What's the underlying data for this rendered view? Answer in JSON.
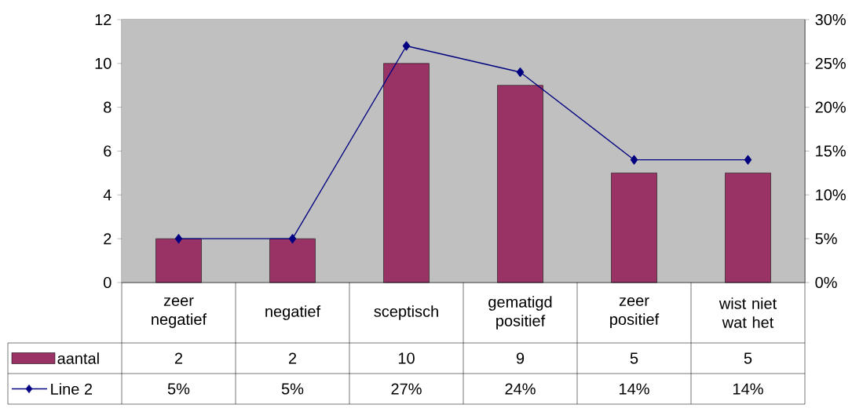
{
  "chart_data": {
    "type": "bar",
    "categories": [
      "zeer negatief",
      "negatief",
      "sceptisch",
      "gematigd positief",
      "zeer positief",
      "wist niet wat het"
    ],
    "series": [
      {
        "name": "aantal",
        "color": "#993366",
        "values": [
          2,
          2,
          10,
          9,
          5,
          5
        ],
        "value_labels": [
          "2",
          "2",
          "10",
          "9",
          "5",
          "5"
        ]
      },
      {
        "name": "Line 2",
        "type": "line",
        "axis": "y2",
        "color": "#000080",
        "marker": "diamond",
        "values": [
          5,
          5,
          27,
          24,
          14,
          14
        ],
        "value_labels": [
          "5%",
          "5%",
          "27%",
          "24%",
          "14%",
          "14%"
        ]
      }
    ],
    "ylim": [
      0,
      12
    ],
    "yticks": [
      0,
      2,
      4,
      6,
      8,
      10,
      12
    ],
    "y2lim": [
      0,
      30
    ],
    "y2ticks": [
      {
        "value": 0,
        "label": "0%"
      },
      {
        "value": 5,
        "label": "5%"
      },
      {
        "value": 10,
        "label": "10%"
      },
      {
        "value": 15,
        "label": "15%"
      },
      {
        "value": 20,
        "label": "20%"
      },
      {
        "value": 25,
        "label": "25%"
      },
      {
        "value": 30,
        "label": "30%"
      }
    ],
    "legend": "bottom"
  }
}
